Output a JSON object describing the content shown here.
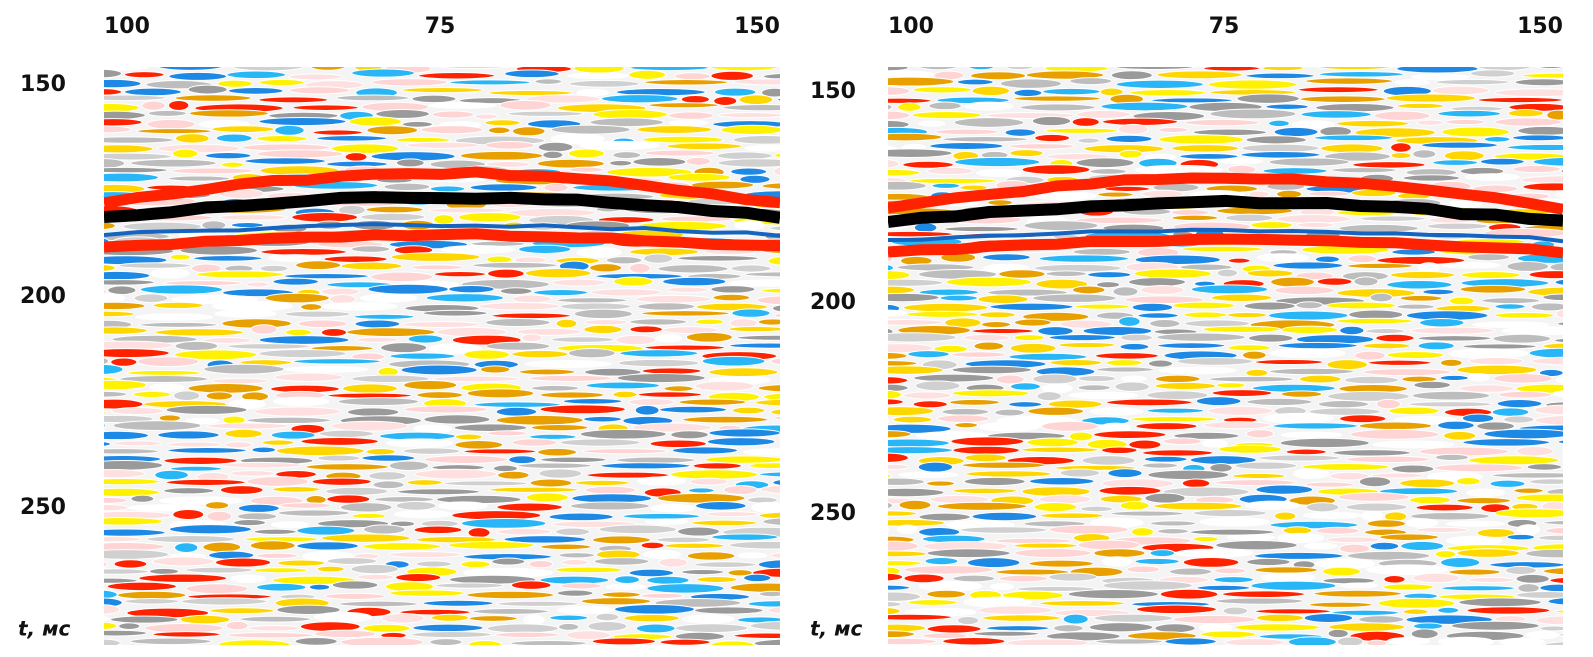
{
  "panels": [
    {
      "x_labels": [
        100,
        75,
        150
      ],
      "y_labels": [
        150,
        200,
        250
      ],
      "y_axis_label": "t, мс"
    },
    {
      "x_labels": [
        100,
        75,
        150
      ],
      "y_labels": [
        150,
        200,
        250
      ],
      "y_axis_label": "t, мс"
    }
  ]
}
